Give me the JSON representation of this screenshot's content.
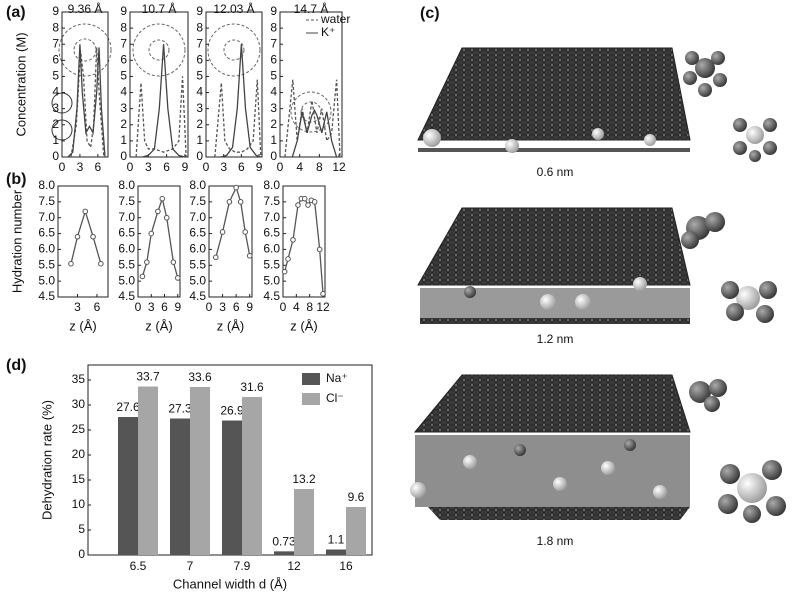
{
  "panel_labels": [
    "(a)",
    "(b)",
    "(c)",
    "(d)"
  ],
  "figure_c": {
    "captions": [
      "0.6 nm",
      "1.2 nm",
      "1.8 nm"
    ]
  },
  "chart_data": [
    {
      "type": "line",
      "title": "9.36 Å",
      "ylabel": "Concentration (M)",
      "xlim": [
        0,
        7.7
      ],
      "ylim": [
        0,
        9
      ],
      "xticks": [
        0,
        3,
        6
      ],
      "yticks": [
        0,
        1,
        2,
        3,
        4,
        5,
        6,
        7,
        8,
        9
      ],
      "series": [
        {
          "style": "dashed",
          "color": "#555",
          "x": [
            1.5,
            2.4,
            3.1,
            3.6,
            4.2,
            4.8,
            5.3,
            5.8,
            6.3,
            7.0
          ],
          "values": [
            0,
            2,
            6.6,
            5,
            1,
            0.6,
            2,
            6.8,
            3.5,
            0
          ]
        },
        {
          "style": "solid",
          "color": "#444",
          "x": [
            1,
            1.8,
            2.5,
            3,
            3.4,
            4,
            4.6,
            5.2,
            5.8,
            6.2,
            6.6,
            7.2
          ],
          "values": [
            0,
            0.3,
            3,
            7,
            4,
            1.5,
            1.9,
            1.5,
            4,
            6.8,
            3,
            0
          ]
        }
      ]
    },
    {
      "type": "line",
      "title": "10.7 Å",
      "xlim": [
        0,
        9.5
      ],
      "ylim": [
        0,
        9
      ],
      "xticks": [
        0,
        3,
        6,
        9
      ],
      "yticks": [
        0,
        1,
        2,
        3,
        4,
        5,
        6,
        7,
        8,
        9
      ],
      "series": [
        {
          "style": "dashed",
          "color": "#555",
          "x": [
            1,
            1.8,
            2.4,
            3,
            4,
            5.5,
            7,
            8,
            8.6,
            9.2
          ],
          "values": [
            0,
            4.6,
            1,
            0.5,
            0.5,
            0.3,
            0.5,
            1,
            5,
            0
          ]
        },
        {
          "style": "solid",
          "color": "#444",
          "x": [
            2,
            3,
            4,
            4.8,
            5.5,
            6.2,
            7,
            8,
            9
          ],
          "values": [
            0,
            0.1,
            0.5,
            3,
            7,
            3,
            0.5,
            0.1,
            0
          ]
        }
      ]
    },
    {
      "type": "line",
      "title": "12.03 Å",
      "xlim": [
        0,
        9.5
      ],
      "ylim": [
        0,
        9
      ],
      "xticks": [
        0,
        3,
        6,
        9
      ],
      "yticks": [
        0,
        1,
        2,
        3,
        4,
        5,
        6,
        7,
        8,
        9
      ],
      "series": [
        {
          "style": "dashed",
          "color": "#555",
          "x": [
            1.5,
            2.6,
            3.2,
            4,
            5,
            6,
            7,
            8,
            8.7,
            9.3
          ],
          "values": [
            0,
            4.6,
            1,
            0.5,
            0.3,
            0.3,
            0.5,
            1,
            4.8,
            0
          ]
        },
        {
          "style": "solid",
          "color": "#444",
          "x": [
            2.5,
            3.5,
            4.5,
            5.3,
            6,
            6.7,
            7.5,
            8.5,
            9.2
          ],
          "values": [
            0,
            0.1,
            0.6,
            3,
            7,
            3,
            0.6,
            0.1,
            0
          ]
        }
      ]
    },
    {
      "type": "line",
      "title": "14.7 Å",
      "xlim": [
        0,
        12.6
      ],
      "ylim": [
        0,
        9
      ],
      "xticks": [
        0,
        4,
        8,
        12
      ],
      "yticks": [
        0,
        1,
        2,
        3,
        4,
        5,
        6,
        7,
        8,
        9
      ],
      "legend": "upper right",
      "series": [
        {
          "name": "water",
          "style": "dashed",
          "color": "#555",
          "x": [
            1,
            2,
            2.6,
            3.5,
            4.5,
            5.5,
            6.5,
            7.5,
            8.5,
            9.5,
            10.5,
            11.5,
            12.2
          ],
          "values": [
            0,
            3,
            4.8,
            1,
            3,
            1.5,
            3.5,
            1.5,
            3,
            1,
            1.5,
            4.8,
            0
          ]
        },
        {
          "name": "K⁺",
          "style": "solid",
          "color": "#444",
          "x": [
            2.5,
            3.5,
            4.5,
            5.5,
            6.5,
            7,
            7.5,
            8.5,
            9.5,
            10.5,
            11.5
          ],
          "values": [
            0,
            1,
            2.8,
            1.5,
            2.6,
            2.9,
            2.6,
            1.5,
            2.8,
            1,
            0
          ]
        }
      ]
    },
    {
      "type": "line",
      "ylabel": "Hydration number",
      "xlabel": "z (Å)",
      "markers": true,
      "xlim": [
        0,
        7.7
      ],
      "ylim": [
        4.5,
        8
      ],
      "xticks": [
        3,
        6
      ],
      "yticks": [
        4.5,
        {
          "value": 5,
          "label": "5.0"
        },
        5.5,
        {
          "value": 6,
          "label": "6.0"
        },
        6.5,
        {
          "value": 7,
          "label": "7.0"
        },
        7.5,
        {
          "value": 8,
          "label": "8.0"
        }
      ],
      "series": [
        {
          "style": "solid",
          "color": "#555",
          "x": [
            2,
            3,
            4.2,
            5.4,
            6.6
          ],
          "values": [
            5.55,
            6.4,
            7.2,
            6.4,
            5.55
          ]
        }
      ]
    },
    {
      "type": "line",
      "xlabel": "z (Å)",
      "markers": true,
      "xlim": [
        0,
        9.5
      ],
      "ylim": [
        4.5,
        8
      ],
      "xticks": [
        0,
        3,
        6,
        9
      ],
      "yticks": [
        4.5,
        {
          "value": 5,
          "label": "5.0"
        },
        5.5,
        {
          "value": 6,
          "label": "6.0"
        },
        6.5,
        {
          "value": 7,
          "label": "7.0"
        },
        7.5,
        {
          "value": 8,
          "label": "8.0"
        }
      ],
      "series": [
        {
          "style": "solid",
          "color": "#555",
          "x": [
            1,
            2,
            3,
            4.5,
            5.5,
            6.5,
            8,
            9
          ],
          "values": [
            5.15,
            5.6,
            6.5,
            7.2,
            7.6,
            7.0,
            5.6,
            5.1
          ]
        }
      ]
    },
    {
      "type": "line",
      "xlabel": "z (Å)",
      "markers": true,
      "xlim": [
        0,
        9.5
      ],
      "ylim": [
        4.5,
        8
      ],
      "xticks": [
        0,
        3,
        6,
        9
      ],
      "yticks": [
        4.5,
        {
          "value": 5,
          "label": "5.0"
        },
        5.5,
        {
          "value": 6,
          "label": "6.0"
        },
        6.5,
        {
          "value": 7,
          "label": "7.0"
        },
        7.5,
        {
          "value": 8,
          "label": "8.0"
        }
      ],
      "series": [
        {
          "style": "solid",
          "color": "#555",
          "x": [
            1.5,
            3,
            4.5,
            6,
            7,
            8,
            9
          ],
          "values": [
            5.75,
            6.55,
            7.5,
            7.95,
            7.5,
            6.55,
            5.8
          ]
        }
      ]
    },
    {
      "type": "line",
      "xlabel": "z (Å)",
      "markers": true,
      "xlim": [
        0,
        12.6
      ],
      "ylim": [
        4.5,
        8
      ],
      "xticks": [
        0,
        4,
        8,
        12
      ],
      "yticks": [
        4.5,
        {
          "value": 5,
          "label": "5.0"
        },
        5.5,
        {
          "value": 6,
          "label": "6.0"
        },
        6.5,
        {
          "value": 7,
          "label": "7.0"
        },
        7.5,
        {
          "value": 8,
          "label": "8.0"
        }
      ],
      "series": [
        {
          "style": "solid",
          "color": "#555",
          "x": [
            0.5,
            1.5,
            3,
            4.5,
            5.5,
            6.5,
            7.5,
            8.5,
            9.5,
            11,
            12
          ],
          "values": [
            5.3,
            5.7,
            6.3,
            7.4,
            7.6,
            7.6,
            7.4,
            7.55,
            7.5,
            6.0,
            4.6
          ]
        }
      ]
    },
    {
      "type": "bar",
      "ylabel": "Dehydration rate (%)",
      "xlabel": "Channel width d (Å)",
      "legend": "upper right",
      "categories": [
        "6.5",
        "7",
        "7.9",
        "12",
        "16"
      ],
      "ylim": [
        0,
        38
      ],
      "yticks": [
        0,
        5,
        10,
        15,
        20,
        25,
        30,
        35
      ],
      "series": [
        {
          "name": "Na⁺",
          "color": "#555",
          "values": [
            27.6,
            27.3,
            26.9,
            0.73,
            1.1
          ]
        },
        {
          "name": "Cl⁻",
          "color": "#a6a6a6",
          "values": [
            33.7,
            33.6,
            31.6,
            13.2,
            9.6
          ]
        }
      ]
    }
  ]
}
